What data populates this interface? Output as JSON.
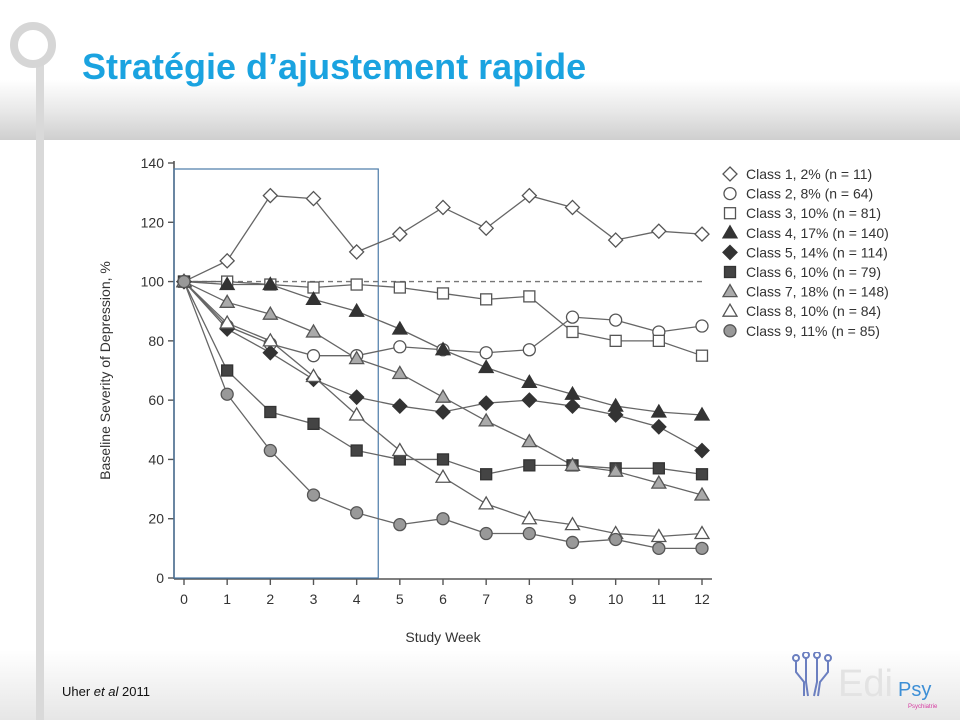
{
  "slide": {
    "title": "Stratégie d’ajustement rapide",
    "citation": {
      "author": "Uher ",
      "etal": "et al",
      "year": " 2011"
    },
    "logo": {
      "name": "Edi",
      "suffix": "Psy",
      "tagline": "Psychiatrie"
    }
  },
  "chart_data": {
    "type": "line",
    "xlabel": "Study Week",
    "ylabel": "Baseline Severity of Depression, %",
    "x": [
      0,
      1,
      2,
      3,
      4,
      5,
      6,
      7,
      8,
      9,
      10,
      11,
      12
    ],
    "y_ticks": [
      0,
      20,
      40,
      60,
      80,
      100,
      120,
      140
    ],
    "ylim": [
      0,
      140
    ],
    "xlim": [
      0,
      12
    ],
    "reference_line": 100,
    "highlight_weeks": [
      0,
      4.5
    ],
    "legend_position": "right",
    "series": [
      {
        "name": "Class 1, 2% (n = 11)",
        "marker": "diamond-open",
        "values": [
          100,
          107,
          129,
          128,
          110,
          116,
          125,
          118,
          129,
          125,
          114,
          117,
          116
        ]
      },
      {
        "name": "Class 2, 8% (n = 64)",
        "marker": "circle-open",
        "values": [
          100,
          85,
          79,
          75,
          75,
          78,
          77,
          76,
          77,
          88,
          87,
          83,
          85
        ]
      },
      {
        "name": "Class 3, 10% (n = 81)",
        "marker": "square-open",
        "values": [
          100,
          100,
          99,
          98,
          99,
          98,
          96,
          94,
          95,
          83,
          80,
          80,
          75
        ]
      },
      {
        "name": "Class 4, 17% (n = 140)",
        "marker": "triangle-filled",
        "values": [
          100,
          99,
          99,
          94,
          90,
          84,
          77,
          71,
          66,
          62,
          58,
          56,
          55
        ]
      },
      {
        "name": "Class 5, 14% (n = 114)",
        "marker": "diamond-filled",
        "values": [
          100,
          84,
          76,
          67,
          61,
          58,
          56,
          59,
          60,
          58,
          55,
          51,
          43
        ]
      },
      {
        "name": "Class 6, 10% (n = 79)",
        "marker": "square-filled",
        "values": [
          100,
          70,
          56,
          52,
          43,
          40,
          40,
          35,
          38,
          38,
          37,
          37,
          35
        ]
      },
      {
        "name": "Class 7, 18% (n = 148)",
        "marker": "triangle-gray",
        "values": [
          100,
          93,
          89,
          83,
          74,
          69,
          61,
          53,
          46,
          38,
          36,
          32,
          28
        ]
      },
      {
        "name": "Class 8, 10% (n = 84)",
        "marker": "triangle-open",
        "values": [
          100,
          86,
          80,
          68,
          55,
          43,
          34,
          25,
          20,
          18,
          15,
          14,
          15
        ]
      },
      {
        "name": "Class 9, 11% (n = 85)",
        "marker": "circle-gray",
        "values": [
          100,
          62,
          43,
          28,
          22,
          18,
          20,
          15,
          15,
          12,
          13,
          10,
          10
        ]
      }
    ]
  }
}
